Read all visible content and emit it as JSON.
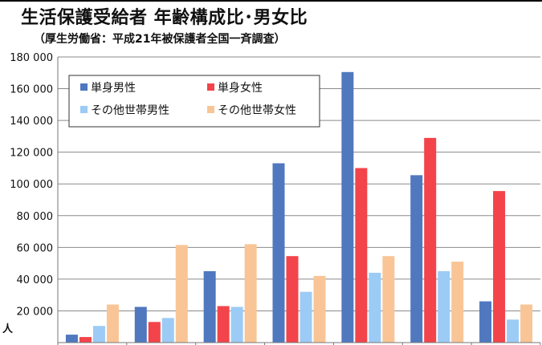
{
  "chart_data": {
    "type": "bar",
    "title": "生活保護受給者 年齢構成比･男女比",
    "subtitle": "（厚生労働省：平成21年被保護者全国一斉調査）",
    "ylabel": "人",
    "ylim": [
      0,
      180000
    ],
    "yticks": [
      20000,
      40000,
      60000,
      80000,
      100000,
      120000,
      140000,
      160000,
      180000
    ],
    "ytick_labels": [
      "20 000",
      "40 000",
      "60 000",
      "80 000",
      "100 000",
      "120 000",
      "140 000",
      "160 000",
      "180 000"
    ],
    "categories": [
      "",
      "",
      "",
      "",
      "",
      "",
      ""
    ],
    "grid": true,
    "legend_position": "top-left",
    "series": [
      {
        "name": "単身男性",
        "color": "#4F78BF",
        "values": [
          5000,
          22500,
          45000,
          113000,
          170500,
          105500,
          26000
        ]
      },
      {
        "name": "単身女性",
        "color": "#F2444A",
        "values": [
          3500,
          13000,
          23000,
          54500,
          110000,
          129000,
          95500
        ]
      },
      {
        "name": "その他世帯男性",
        "color": "#9CCBF5",
        "values": [
          10500,
          15500,
          22500,
          32000,
          44000,
          45000,
          14500
        ]
      },
      {
        "name": "その他世帯女性",
        "color": "#F9C596",
        "values": [
          24000,
          61500,
          62000,
          42000,
          54500,
          51000,
          24000
        ]
      }
    ]
  }
}
